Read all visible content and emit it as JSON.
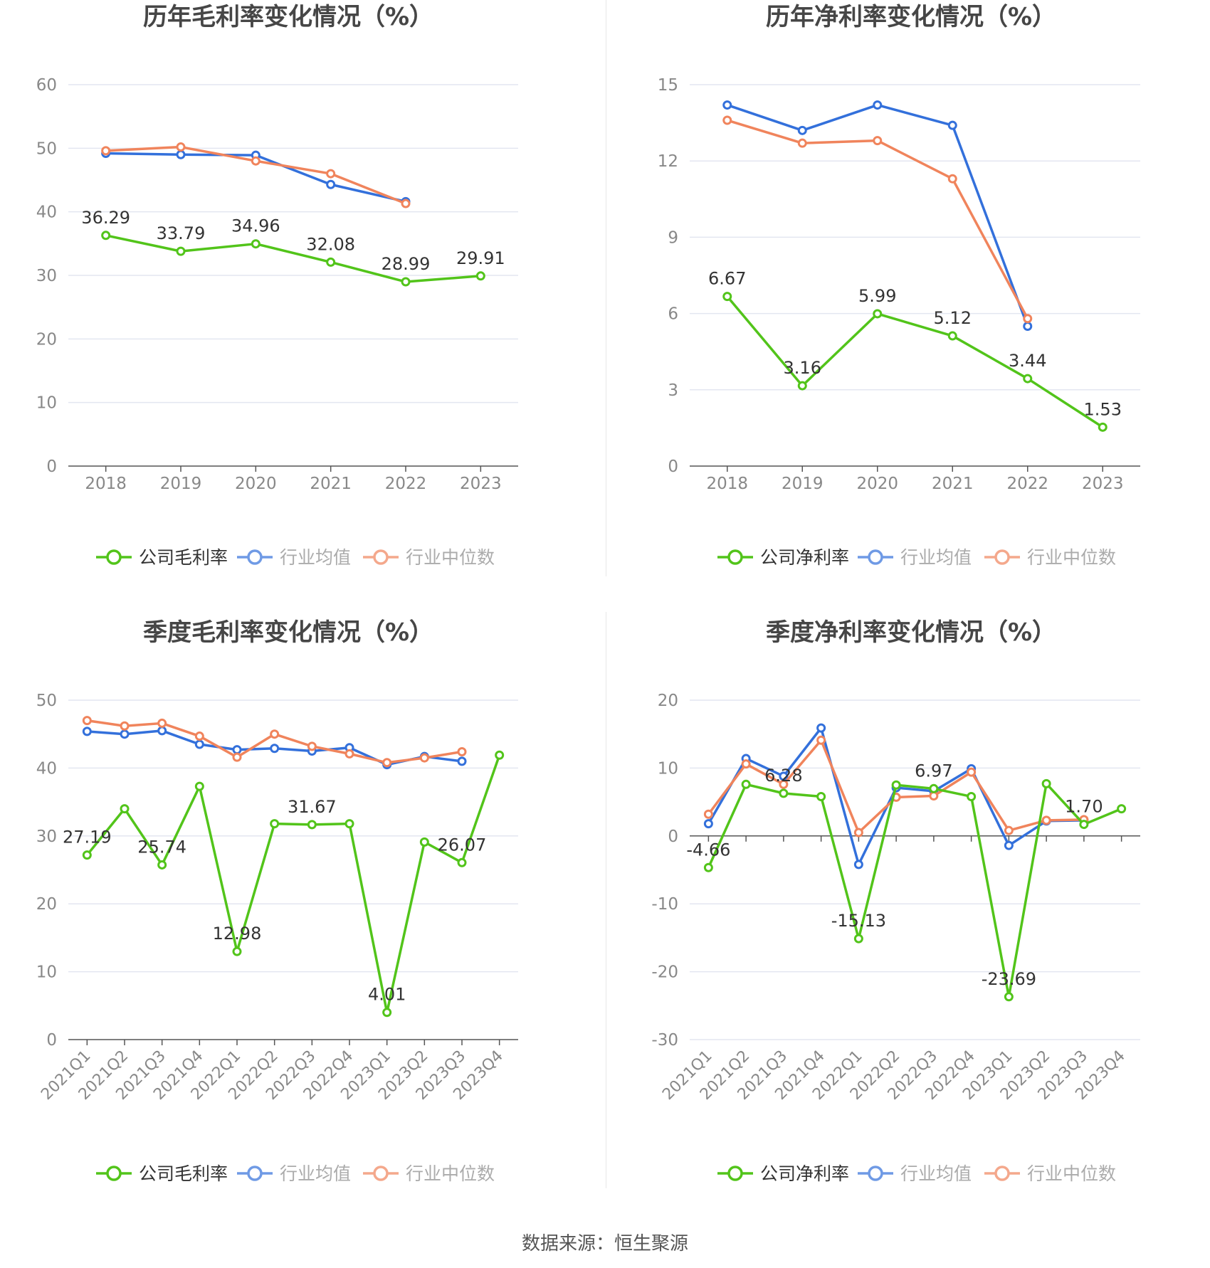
{
  "source_text": "数据来源：恒生聚源",
  "colors": {
    "company": "#52c41a",
    "avg": "#3370db",
    "median": "#f0845c",
    "grid": "#e3e6f0",
    "axis": "#555555",
    "tick": "#888888",
    "title": "#464646",
    "label": "#333333"
  },
  "chart_data": [
    {
      "type": "line",
      "title": "历年毛利率变化情况（%）",
      "categories": [
        "2018",
        "2019",
        "2020",
        "2021",
        "2022",
        "2023"
      ],
      "ylim": [
        0,
        60
      ],
      "yticks": [
        "60",
        "50",
        "40",
        "30",
        "20",
        "10",
        "0"
      ],
      "ytick_values": [
        60,
        50,
        40,
        30,
        20,
        10,
        0
      ],
      "rotate_xlabels": false,
      "legend": "bottom",
      "series": [
        {
          "name": "公司毛利率",
          "key": "company",
          "values": [
            36.29,
            33.79,
            34.96,
            32.08,
            28.99,
            29.91
          ],
          "labels": [
            "36.29",
            "33.79",
            "34.96",
            "32.08",
            "28.99",
            "29.91"
          ]
        },
        {
          "name": "行业均值",
          "key": "avg",
          "values": [
            49.2,
            49.0,
            48.9,
            44.3,
            41.6,
            null
          ]
        },
        {
          "name": "行业中位数",
          "key": "median",
          "values": [
            49.6,
            50.2,
            48.0,
            46.0,
            41.3,
            null
          ]
        }
      ]
    },
    {
      "type": "line",
      "title": "历年净利率变化情况（%）",
      "categories": [
        "2018",
        "2019",
        "2020",
        "2021",
        "2022",
        "2023"
      ],
      "ylim": [
        0,
        15
      ],
      "yticks": [
        "15",
        "12",
        "9",
        "6",
        "3",
        "0"
      ],
      "ytick_values": [
        15,
        12,
        9,
        6,
        3,
        0
      ],
      "rotate_xlabels": false,
      "legend": "bottom",
      "series": [
        {
          "name": "公司净利率",
          "key": "company",
          "values": [
            6.67,
            3.16,
            5.99,
            5.12,
            3.44,
            1.53
          ],
          "labels": [
            "6.67",
            "3.16",
            "5.99",
            "5.12",
            "3.44",
            "1.53"
          ]
        },
        {
          "name": "行业均值",
          "key": "avg",
          "values": [
            14.2,
            13.2,
            14.2,
            13.4,
            5.5,
            null
          ]
        },
        {
          "name": "行业中位数",
          "key": "median",
          "values": [
            13.6,
            12.7,
            12.8,
            11.3,
            5.8,
            null
          ]
        }
      ]
    },
    {
      "type": "line",
      "title": "季度毛利率变化情况（%）",
      "categories": [
        "2021Q1",
        "2021Q2",
        "2021Q3",
        "2021Q4",
        "2022Q1",
        "2022Q2",
        "2022Q3",
        "2022Q4",
        "2023Q1",
        "2023Q2",
        "2023Q3",
        "2023Q4"
      ],
      "ylim": [
        0,
        50
      ],
      "yticks": [
        "50",
        "40",
        "30",
        "20",
        "10",
        "0"
      ],
      "ytick_values": [
        50,
        40,
        30,
        20,
        10,
        0
      ],
      "rotate_xlabels": true,
      "legend": "bottom",
      "series": [
        {
          "name": "公司毛利率",
          "key": "company",
          "values": [
            27.19,
            34.0,
            25.74,
            37.3,
            12.98,
            31.8,
            31.67,
            31.8,
            4.01,
            29.1,
            26.07,
            41.9
          ],
          "labels": [
            "27.19",
            "",
            "25.74",
            "",
            "12.98",
            "",
            "31.67",
            "",
            "4.01",
            "",
            "26.07",
            ""
          ]
        },
        {
          "name": "行业均值",
          "key": "avg",
          "values": [
            45.4,
            45.0,
            45.5,
            43.5,
            42.7,
            42.9,
            42.5,
            43.0,
            40.5,
            41.7,
            41.0,
            null
          ]
        },
        {
          "name": "行业中位数",
          "key": "median",
          "values": [
            47.0,
            46.2,
            46.6,
            44.7,
            41.6,
            45.0,
            43.2,
            42.1,
            40.8,
            41.5,
            42.4,
            null
          ]
        }
      ]
    },
    {
      "type": "line",
      "title": "季度净利率变化情况（%）",
      "categories": [
        "2021Q1",
        "2021Q2",
        "2021Q3",
        "2021Q4",
        "2022Q1",
        "2022Q2",
        "2022Q3",
        "2022Q4",
        "2023Q1",
        "2023Q2",
        "2023Q3",
        "2023Q4"
      ],
      "ylim": [
        -30,
        20
      ],
      "yticks": [
        "20",
        "10",
        "0",
        "-10",
        "-20",
        "-30"
      ],
      "ytick_values": [
        20,
        10,
        0,
        -10,
        -20,
        -30
      ],
      "rotate_xlabels": true,
      "legend": "bottom",
      "series": [
        {
          "name": "公司净利率",
          "key": "company",
          "values": [
            -4.66,
            7.6,
            6.28,
            5.8,
            -15.13,
            7.5,
            6.97,
            5.8,
            -23.69,
            7.7,
            1.7,
            4.0
          ],
          "labels": [
            "-4.66",
            "",
            "6.28",
            "",
            "-15.13",
            "",
            "6.97",
            "",
            "-23.69",
            "",
            "1.70",
            ""
          ]
        },
        {
          "name": "行业均值",
          "key": "avg",
          "values": [
            1.8,
            11.4,
            8.8,
            15.9,
            -4.2,
            7.1,
            6.6,
            9.9,
            -1.4,
            2.2,
            2.3,
            null
          ]
        },
        {
          "name": "行业中位数",
          "key": "median",
          "values": [
            3.2,
            10.6,
            7.6,
            14.1,
            0.5,
            5.7,
            5.9,
            9.4,
            0.8,
            2.3,
            2.4,
            null
          ]
        }
      ]
    }
  ]
}
